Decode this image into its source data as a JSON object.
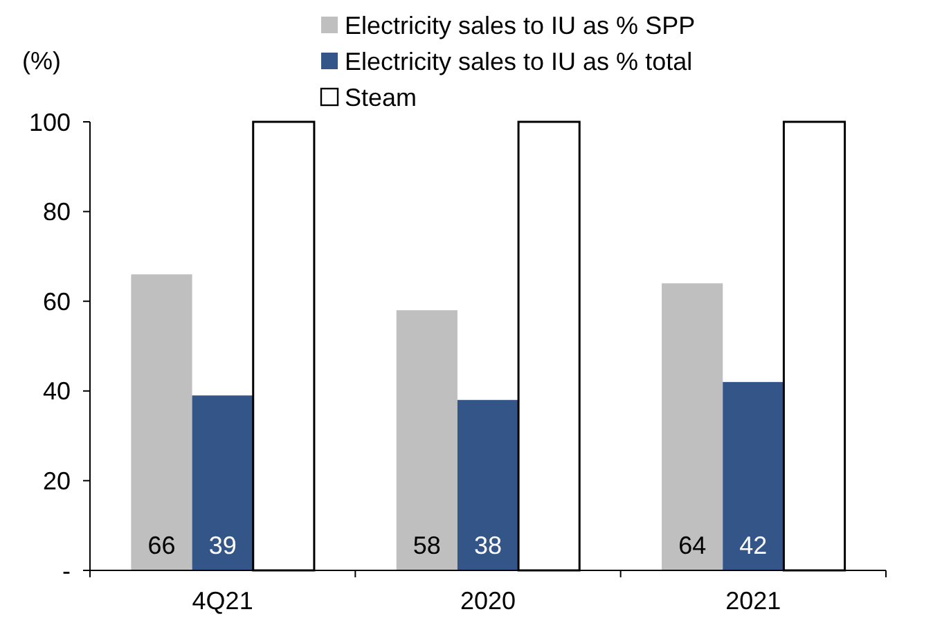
{
  "chart_data": {
    "type": "bar",
    "ylabel": "(%)",
    "categories": [
      "4Q21",
      "2020",
      "2021"
    ],
    "series": [
      {
        "name": "Electricity sales to IU as % SPP",
        "color": "#bfbfbf",
        "values": [
          66,
          58,
          64
        ],
        "value_labels": [
          "66",
          "58",
          "64"
        ]
      },
      {
        "name": "Electricity sales to IU as % total",
        "color": "#335587",
        "values": [
          39,
          38,
          42
        ],
        "value_labels": [
          "39",
          "38",
          "42"
        ]
      },
      {
        "name": "Steam",
        "color": "#ffffff",
        "values": [
          100,
          100,
          100
        ]
      }
    ],
    "ylim": [
      0,
      100
    ],
    "yticks": [
      {
        "value": 0,
        "label": "-"
      },
      20,
      40,
      60,
      80,
      100
    ],
    "grid": false,
    "legend": "top"
  }
}
